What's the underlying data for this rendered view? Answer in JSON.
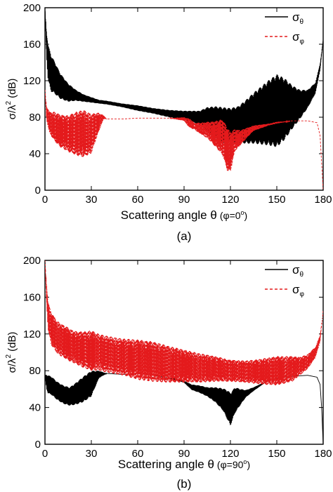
{
  "chart_data": [
    {
      "type": "line",
      "panel_label": "(a)",
      "xlabel_main": "Scattering angle θ",
      "xlabel_note": "(φ=0",
      "xlabel_note_sup": "o",
      "xlabel_note_end": ")",
      "ylabel_main": "σ/λ",
      "ylabel_sup": "2",
      "ylabel_unit": "(dB)",
      "xlim": [
        0,
        180
      ],
      "ylim": [
        0,
        200
      ],
      "xticks": [
        0,
        30,
        60,
        90,
        120,
        150,
        180
      ],
      "yticks": [
        0,
        40,
        80,
        120,
        160,
        200
      ],
      "grid": false,
      "legend_position": "top-right",
      "series": [
        {
          "name": "σ",
          "name_sub": "θ",
          "color": "#000000",
          "dash": "solid",
          "x": [
            0,
            1,
            2,
            4,
            6,
            10,
            15,
            20,
            25,
            30,
            35,
            40,
            50,
            60,
            70,
            80,
            90,
            95,
            100,
            105,
            110,
            115,
            120,
            125,
            130,
            135,
            140,
            145,
            150,
            155,
            160,
            165,
            170,
            175,
            178,
            179,
            180
          ],
          "y": [
            200,
            160,
            140,
            128,
            124,
            114,
            107,
            104,
            101,
            99,
            97,
            96,
            93,
            90,
            87,
            84,
            82,
            81,
            79,
            77,
            74,
            71,
            70,
            72,
            75,
            79,
            82,
            85,
            87,
            89,
            91,
            94,
            100,
            112,
            135,
            150,
            165
          ],
          "osc": [
            0,
            15,
            20,
            20,
            18,
            14,
            10,
            6,
            4,
            3,
            2,
            2,
            2,
            3,
            3,
            4,
            5,
            6,
            8,
            14,
            18,
            20,
            20,
            20,
            24,
            28,
            32,
            36,
            40,
            34,
            24,
            16,
            10,
            6,
            4,
            2,
            0
          ]
        },
        {
          "name": "σ",
          "name_sub": "φ",
          "color": "#e41a1c",
          "dash": "dashed",
          "x": [
            0,
            1,
            3,
            6,
            10,
            15,
            20,
            25,
            30,
            35,
            38,
            40,
            50,
            60,
            70,
            80,
            90,
            93,
            97,
            100,
            105,
            110,
            115,
            118,
            120,
            123,
            127,
            130,
            135,
            140,
            145,
            150,
            160,
            170,
            176,
            178,
            179,
            180
          ],
          "y": [
            110,
            85,
            74,
            70,
            65,
            62,
            62,
            62,
            62,
            75,
            80,
            78,
            78,
            79,
            79,
            79,
            78,
            74,
            70,
            68,
            66,
            62,
            58,
            45,
            42,
            55,
            58,
            62,
            68,
            70,
            72,
            74,
            76,
            76,
            74,
            60,
            30,
            0
          ],
          "osc": [
            0,
            8,
            12,
            16,
            18,
            20,
            24,
            26,
            22,
            10,
            2,
            0,
            0,
            0,
            0,
            0,
            2,
            5,
            4,
            6,
            9,
            14,
            20,
            24,
            22,
            12,
            8,
            6,
            3,
            2,
            1,
            1,
            0,
            0,
            0,
            0,
            0,
            0
          ]
        }
      ]
    },
    {
      "type": "line",
      "panel_label": "(b)",
      "xlabel_main": "Scattering angle θ",
      "xlabel_note": "(φ=90",
      "xlabel_note_sup": "o",
      "xlabel_note_end": ")",
      "ylabel_main": "σ/λ",
      "ylabel_sup": "2",
      "ylabel_unit": "(dB)",
      "xlim": [
        0,
        180
      ],
      "ylim": [
        0,
        200
      ],
      "xticks": [
        0,
        30,
        60,
        90,
        120,
        150,
        180
      ],
      "yticks": [
        0,
        40,
        80,
        120,
        160,
        200
      ],
      "grid": false,
      "legend_position": "top-right",
      "series": [
        {
          "name": "σ",
          "name_sub": "θ",
          "color": "#000000",
          "dash": "solid",
          "x": [
            0,
            1,
            2,
            4,
            8,
            12,
            16,
            20,
            25,
            30,
            33,
            35,
            40,
            50,
            60,
            70,
            80,
            90,
            95,
            100,
            105,
            110,
            115,
            118,
            120,
            123,
            127,
            130,
            135,
            140,
            145,
            150,
            160,
            170,
            176,
            178,
            179,
            180
          ],
          "y": [
            75,
            68,
            65,
            64,
            58,
            54,
            52,
            55,
            60,
            66,
            72,
            76,
            77,
            76,
            77,
            75,
            72,
            68,
            62,
            60,
            57,
            54,
            49,
            43,
            38,
            48,
            52,
            55,
            60,
            65,
            70,
            72,
            74,
            75,
            73,
            65,
            40,
            0
          ],
          "osc": [
            0,
            8,
            10,
            10,
            10,
            10,
            10,
            12,
            14,
            14,
            8,
            4,
            0,
            0,
            0,
            0,
            0,
            1,
            3,
            4,
            5,
            8,
            12,
            16,
            18,
            14,
            8,
            4,
            2,
            1,
            0,
            0,
            0,
            0,
            0,
            0,
            0,
            0
          ]
        },
        {
          "name": "σ",
          "name_sub": "φ",
          "color": "#e41a1c",
          "dash": "dashed",
          "x": [
            0,
            1,
            2,
            4,
            8,
            12,
            16,
            20,
            25,
            30,
            35,
            40,
            50,
            60,
            70,
            80,
            90,
            100,
            110,
            120,
            130,
            140,
            150,
            160,
            165,
            170,
            175,
            178,
            179,
            180
          ],
          "y": [
            200,
            165,
            140,
            126,
            116,
            112,
            108,
            105,
            103,
            102,
            100,
            98,
            95,
            92,
            90,
            87,
            85,
            83,
            82,
            80,
            79,
            79,
            80,
            82,
            85,
            90,
            100,
            115,
            130,
            145
          ],
          "osc": [
            0,
            12,
            16,
            18,
            18,
            18,
            18,
            18,
            20,
            22,
            20,
            20,
            20,
            22,
            22,
            20,
            18,
            16,
            14,
            12,
            12,
            14,
            16,
            14,
            10,
            8,
            6,
            4,
            2,
            0
          ]
        }
      ]
    }
  ]
}
